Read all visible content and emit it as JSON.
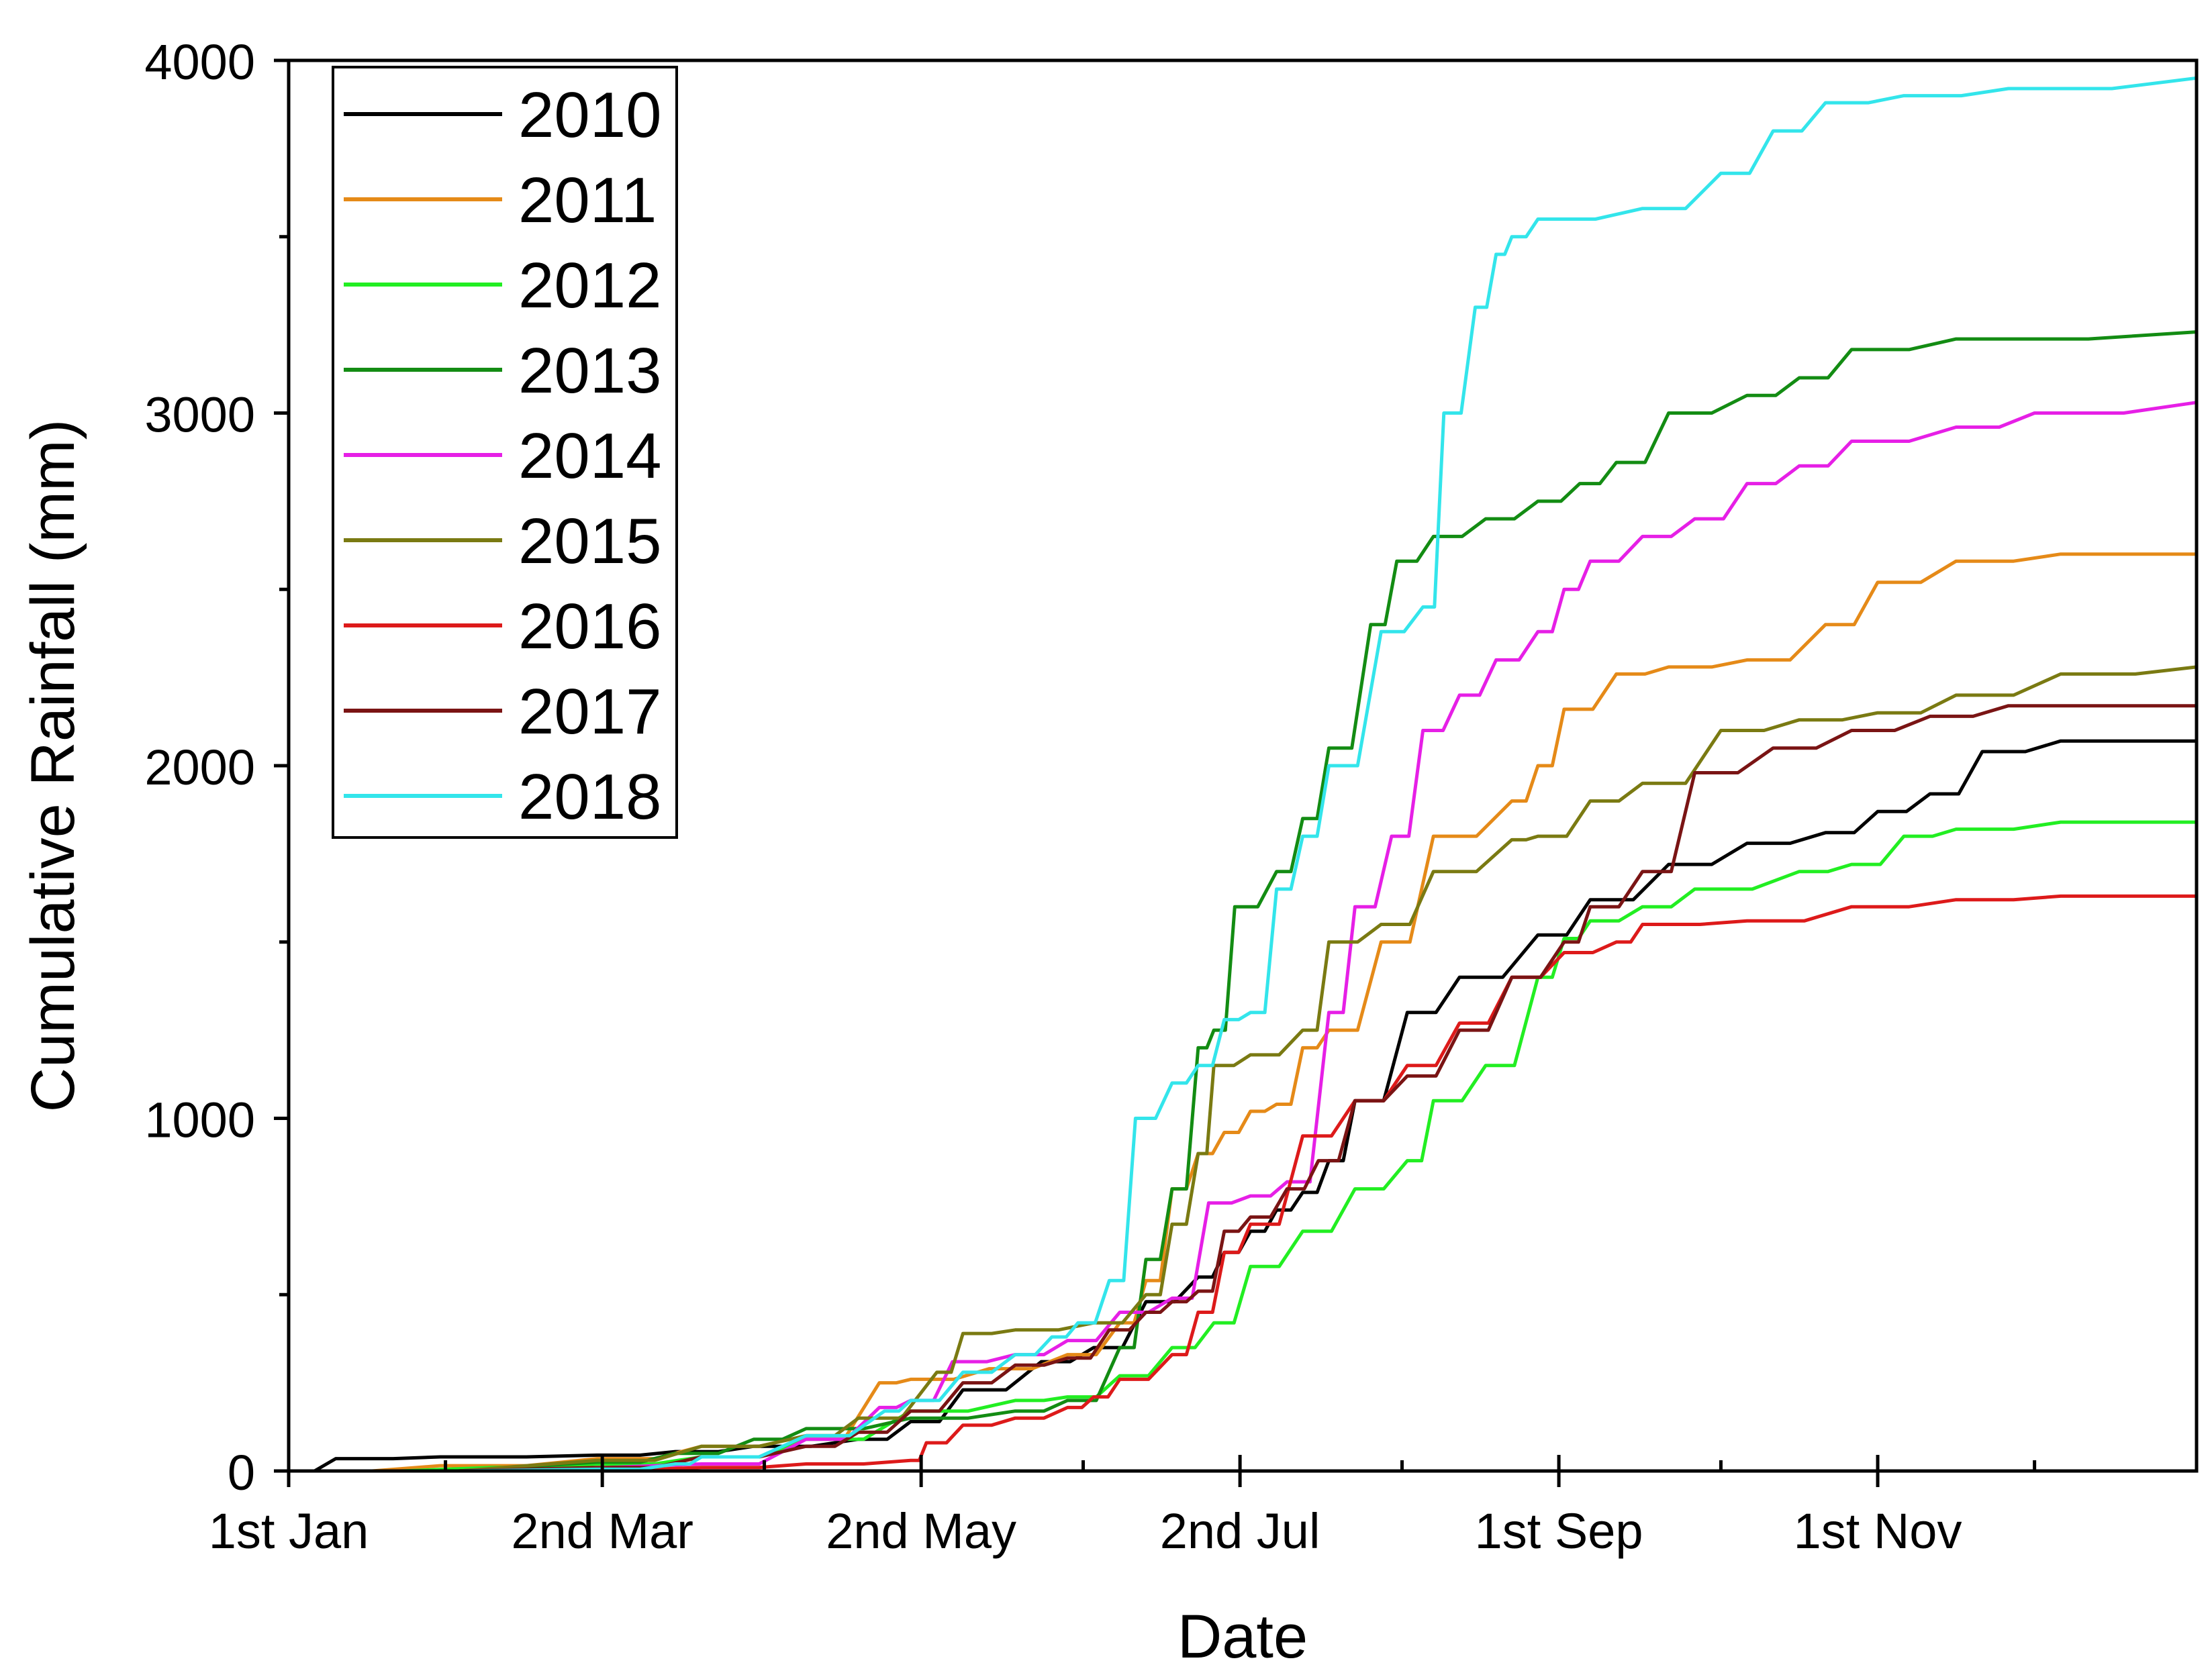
{
  "chart_data": {
    "type": "line",
    "title": "",
    "xlabel": "Date",
    "ylabel": "Cumulative Rainfall (mm)",
    "x_unit": "day of year",
    "xlim": [
      1,
      366
    ],
    "ylim": [
      0,
      4000
    ],
    "y_ticks": [
      0,
      1000,
      2000,
      3000,
      4000
    ],
    "y_minor_ticks": [
      500,
      1500,
      2500,
      3500
    ],
    "x_ticks": [
      {
        "day": 1,
        "label": "1st Jan"
      },
      {
        "day": 61,
        "label": "2nd Mar"
      },
      {
        "day": 122,
        "label": "2nd May"
      },
      {
        "day": 183,
        "label": "2nd Jul"
      },
      {
        "day": 244,
        "label": "1st Sep"
      },
      {
        "day": 305,
        "label": "1st Nov"
      }
    ],
    "x_minor_ticks": [
      31,
      92,
      153,
      214,
      275,
      335
    ],
    "legend_position": "top-left",
    "grid": false,
    "series": [
      {
        "name": "2010",
        "color": "#000000",
        "x": [
          1,
          10,
          30,
          60,
          75,
          90,
          110,
          120,
          130,
          145,
          155,
          165,
          175,
          180,
          185,
          190,
          195,
          200,
          205,
          215,
          225,
          240,
          250,
          265,
          280,
          295,
          305,
          315,
          325,
          340,
          366
        ],
        "y": [
          0,
          35,
          40,
          45,
          55,
          70,
          90,
          140,
          230,
          310,
          350,
          480,
          550,
          620,
          680,
          740,
          790,
          880,
          1050,
          1300,
          1400,
          1520,
          1620,
          1720,
          1780,
          1810,
          1870,
          1920,
          2040,
          2070,
          2070
        ]
      },
      {
        "name": "2011",
        "color": "#E58A18",
        "x": [
          1,
          30,
          60,
          80,
          100,
          114,
          120,
          135,
          150,
          160,
          165,
          170,
          175,
          180,
          185,
          190,
          195,
          200,
          210,
          220,
          235,
          240,
          245,
          255,
          265,
          280,
          295,
          305,
          320,
          340,
          366
        ],
        "y": [
          0,
          15,
          35,
          70,
          100,
          250,
          260,
          290,
          330,
          420,
          540,
          800,
          900,
          960,
          1020,
          1040,
          1200,
          1250,
          1500,
          1800,
          1900,
          2000,
          2160,
          2260,
          2280,
          2300,
          2400,
          2520,
          2580,
          2600,
          2600
        ]
      },
      {
        "name": "2012",
        "color": "#22EE22",
        "x": [
          1,
          40,
          60,
          80,
          100,
          120,
          140,
          150,
          160,
          170,
          178,
          185,
          195,
          205,
          215,
          220,
          230,
          240,
          245,
          250,
          260,
          270,
          290,
          300,
          310,
          320,
          340,
          366
        ],
        "y": [
          0,
          10,
          20,
          40,
          90,
          170,
          200,
          210,
          270,
          350,
          420,
          580,
          680,
          800,
          880,
          1050,
          1150,
          1400,
          1510,
          1560,
          1600,
          1650,
          1700,
          1720,
          1800,
          1820,
          1840,
          1840
        ]
      },
      {
        "name": "2013",
        "color": "#138C13",
        "x": [
          1,
          60,
          75,
          90,
          100,
          120,
          140,
          150,
          160,
          165,
          170,
          175,
          178,
          182,
          190,
          195,
          200,
          208,
          213,
          220,
          230,
          240,
          248,
          255,
          265,
          280,
          290,
          300,
          320,
          366
        ],
        "y": [
          0,
          25,
          50,
          90,
          120,
          150,
          170,
          200,
          350,
          600,
          800,
          1200,
          1250,
          1600,
          1700,
          1850,
          2050,
          2400,
          2580,
          2650,
          2700,
          2750,
          2800,
          2860,
          3000,
          3050,
          3100,
          3180,
          3210,
          3230
        ]
      },
      {
        "name": "2014",
        "color": "#E61FE6",
        "x": [
          1,
          80,
          100,
          114,
          120,
          128,
          140,
          150,
          160,
          170,
          177,
          185,
          192,
          200,
          205,
          212,
          218,
          225,
          232,
          240,
          245,
          250,
          260,
          270,
          280,
          290,
          300,
          320,
          335,
          366
        ],
        "y": [
          0,
          20,
          90,
          180,
          200,
          310,
          330,
          370,
          450,
          490,
          760,
          780,
          820,
          1300,
          1600,
          1800,
          2100,
          2200,
          2300,
          2380,
          2500,
          2580,
          2650,
          2700,
          2800,
          2850,
          2920,
          2960,
          3000,
          3030
        ]
      },
      {
        "name": "2015",
        "color": "#7A7A12",
        "x": [
          1,
          60,
          80,
          100,
          110,
          125,
          130,
          140,
          155,
          165,
          170,
          175,
          178,
          185,
          195,
          200,
          210,
          220,
          235,
          240,
          250,
          260,
          275,
          290,
          305,
          320,
          340,
          366
        ],
        "y": [
          0,
          30,
          70,
          100,
          150,
          280,
          390,
          400,
          420,
          500,
          700,
          900,
          1150,
          1180,
          1250,
          1500,
          1550,
          1700,
          1790,
          1800,
          1900,
          1950,
          2100,
          2130,
          2150,
          2200,
          2260,
          2280
        ]
      },
      {
        "name": "2016",
        "color": "#DD1A1A",
        "x": [
          1,
          60,
          80,
          100,
          120,
          123,
          130,
          140,
          150,
          155,
          160,
          170,
          175,
          180,
          185,
          195,
          205,
          215,
          225,
          235,
          245,
          255,
          260,
          280,
          300,
          320,
          340,
          366
        ],
        "y": [
          0,
          5,
          10,
          20,
          30,
          80,
          130,
          150,
          180,
          210,
          260,
          330,
          450,
          620,
          700,
          950,
          1050,
          1150,
          1270,
          1400,
          1470,
          1500,
          1550,
          1560,
          1600,
          1620,
          1630,
          1630
        ]
      },
      {
        "name": "2017",
        "color": "#7A1414",
        "x": [
          1,
          60,
          80,
          100,
          110,
          120,
          130,
          140,
          150,
          158,
          165,
          170,
          175,
          180,
          185,
          192,
          198,
          205,
          215,
          225,
          235,
          245,
          250,
          260,
          270,
          285,
          300,
          315,
          330,
          366
        ],
        "y": [
          0,
          10,
          40,
          70,
          110,
          170,
          250,
          300,
          320,
          400,
          450,
          480,
          510,
          680,
          720,
          800,
          880,
          1050,
          1120,
          1250,
          1400,
          1500,
          1600,
          1700,
          1980,
          2050,
          2100,
          2140,
          2170,
          2170
        ]
      },
      {
        "name": "2018",
        "color": "#33E5EB",
        "x": [
          1,
          60,
          75,
          80,
          100,
          115,
          120,
          130,
          140,
          147,
          152,
          158,
          163,
          170,
          175,
          180,
          185,
          190,
          195,
          200,
          210,
          218,
          222,
          228,
          232,
          235,
          240,
          260,
          275,
          285,
          295,
          310,
          330,
          366
        ],
        "y": [
          0,
          5,
          20,
          40,
          100,
          170,
          200,
          280,
          330,
          380,
          420,
          540,
          1000,
          1100,
          1150,
          1280,
          1300,
          1650,
          1800,
          2000,
          2380,
          2450,
          3000,
          3300,
          3450,
          3500,
          3550,
          3580,
          3680,
          3800,
          3880,
          3900,
          3920,
          3950
        ]
      }
    ]
  }
}
